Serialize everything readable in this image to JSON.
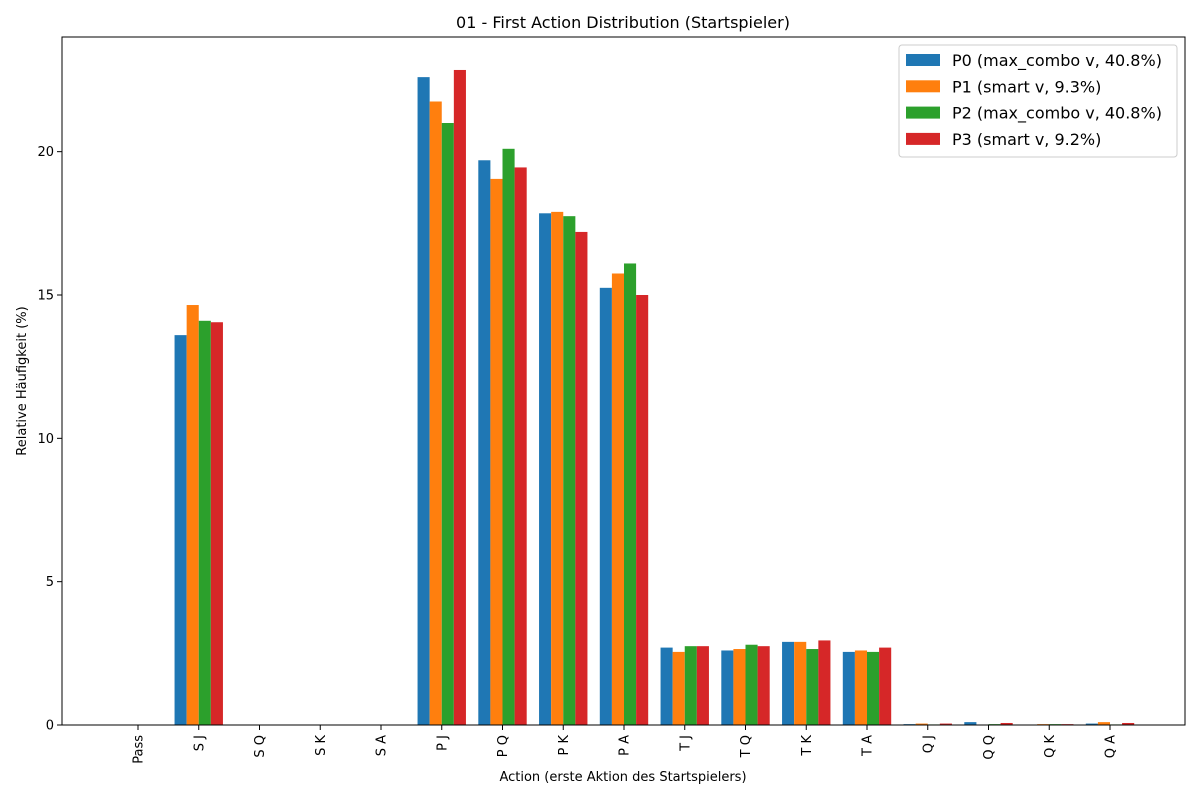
{
  "chart_data": {
    "type": "bar",
    "title": "01 - First Action Distribution (Startspieler)",
    "xlabel": "Action (erste Aktion des Startspielers)",
    "ylabel": "Relative Häufigkeit (%)",
    "ylim": [
      0,
      24
    ],
    "yticks": [
      0,
      5,
      10,
      15,
      20
    ],
    "ytick_labels": [
      "0",
      "5",
      "10",
      "15",
      "20"
    ],
    "grid": false,
    "legend_position": "top-right",
    "categories": [
      "Pass",
      "S J",
      "S Q",
      "S K",
      "S A",
      "P J",
      "P Q",
      "P K",
      "P A",
      "T J",
      "T Q",
      "T K",
      "T A",
      "Q J",
      "Q Q",
      "Q K",
      "Q A"
    ],
    "series": [
      {
        "name": "P0 (max_combo v, 40.8%)",
        "color": "#1f77b4",
        "values": [
          0,
          13.6,
          0,
          0,
          0,
          22.6,
          19.7,
          17.85,
          15.25,
          2.7,
          2.6,
          2.9,
          2.55,
          0.03,
          0.1,
          0.0,
          0.05
        ]
      },
      {
        "name": "P1 (smart v, 9.3%)",
        "color": "#ff7f0e",
        "values": [
          0,
          14.65,
          0,
          0,
          0,
          21.75,
          19.05,
          17.9,
          15.75,
          2.55,
          2.65,
          2.9,
          2.6,
          0.05,
          0.0,
          0.03,
          0.1
        ]
      },
      {
        "name": "P2 (max_combo v, 40.8%)",
        "color": "#2ca02c",
        "values": [
          0,
          14.1,
          0,
          0,
          0,
          21.0,
          20.1,
          17.75,
          16.1,
          2.75,
          2.8,
          2.65,
          2.55,
          0.02,
          0.03,
          0.03,
          0.02
        ]
      },
      {
        "name": "P3 (smart v, 9.2%)",
        "color": "#d62728",
        "values": [
          0,
          14.05,
          0,
          0,
          0,
          22.85,
          19.45,
          17.2,
          15.0,
          2.75,
          2.75,
          2.95,
          2.7,
          0.05,
          0.07,
          0.03,
          0.07
        ]
      }
    ]
  }
}
